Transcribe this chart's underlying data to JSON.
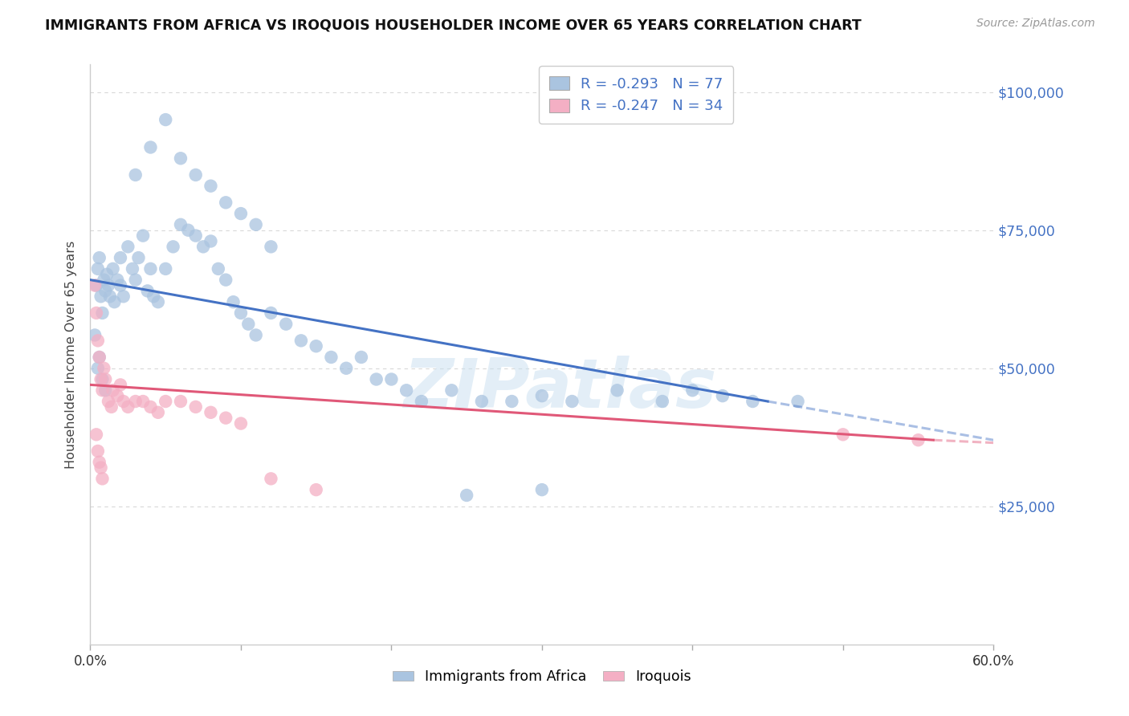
{
  "title": "IMMIGRANTS FROM AFRICA VS IROQUOIS HOUSEHOLDER INCOME OVER 65 YEARS CORRELATION CHART",
  "source": "Source: ZipAtlas.com",
  "ylabel": "Householder Income Over 65 years",
  "legend_blue_r": "R = -0.293",
  "legend_blue_n": "N = 77",
  "legend_pink_r": "R = -0.247",
  "legend_pink_n": "N = 34",
  "legend_blue_label": "Immigrants from Africa",
  "legend_pink_label": "Iroquois",
  "watermark": "ZIPatlas",
  "blue_marker_color": "#aac4e0",
  "blue_line_color": "#4472c4",
  "pink_marker_color": "#f4afc4",
  "pink_line_color": "#e05878",
  "text_color_blue": "#4472c4",
  "grid_color": "#d8d8d8",
  "background_color": "#ffffff",
  "xlim": [
    0,
    60
  ],
  "ylim": [
    0,
    105000
  ],
  "yticks": [
    25000,
    50000,
    75000,
    100000
  ],
  "ytick_labels": [
    "$25,000",
    "$50,000",
    "$75,000",
    "$100,000"
  ],
  "blue_line_x0": 0,
  "blue_line_y0": 66000,
  "blue_line_x1": 45,
  "blue_line_y1": 44000,
  "blue_line_dash_x1": 60,
  "blue_line_dash_y1": 37000,
  "pink_line_x0": 0,
  "pink_line_y0": 47000,
  "pink_line_x1": 56,
  "pink_line_y1": 37000,
  "pink_line_dash_x1": 60,
  "pink_line_dash_y1": 36500,
  "blue_scatter_x": [
    0.4,
    0.5,
    0.6,
    0.7,
    0.8,
    0.9,
    1.0,
    1.1,
    1.2,
    1.3,
    1.5,
    1.6,
    1.8,
    2.0,
    2.0,
    2.2,
    2.5,
    2.8,
    3.0,
    3.2,
    3.5,
    3.8,
    4.0,
    4.2,
    4.5,
    5.0,
    5.5,
    6.0,
    6.5,
    7.0,
    7.5,
    8.0,
    8.5,
    9.0,
    9.5,
    10.0,
    10.5,
    11.0,
    12.0,
    13.0,
    14.0,
    15.0,
    16.0,
    17.0,
    18.0,
    19.0,
    20.0,
    21.0,
    22.0,
    24.0,
    26.0,
    28.0,
    30.0,
    32.0,
    35.0,
    38.0,
    40.0,
    42.0,
    44.0,
    47.0,
    3.0,
    4.0,
    5.0,
    6.0,
    7.0,
    8.0,
    9.0,
    10.0,
    11.0,
    12.0,
    25.0,
    30.0,
    0.3,
    0.5,
    0.6,
    0.8,
    1.0
  ],
  "blue_scatter_y": [
    65000,
    68000,
    70000,
    63000,
    60000,
    66000,
    64000,
    67000,
    65000,
    63000,
    68000,
    62000,
    66000,
    65000,
    70000,
    63000,
    72000,
    68000,
    66000,
    70000,
    74000,
    64000,
    68000,
    63000,
    62000,
    68000,
    72000,
    76000,
    75000,
    74000,
    72000,
    73000,
    68000,
    66000,
    62000,
    60000,
    58000,
    56000,
    60000,
    58000,
    55000,
    54000,
    52000,
    50000,
    52000,
    48000,
    48000,
    46000,
    44000,
    46000,
    44000,
    44000,
    45000,
    44000,
    46000,
    44000,
    46000,
    45000,
    44000,
    44000,
    85000,
    90000,
    95000,
    88000,
    85000,
    83000,
    80000,
    78000,
    76000,
    72000,
    27000,
    28000,
    56000,
    50000,
    52000,
    48000,
    46000
  ],
  "pink_scatter_x": [
    0.3,
    0.4,
    0.5,
    0.6,
    0.7,
    0.8,
    0.9,
    1.0,
    1.2,
    1.4,
    1.5,
    1.8,
    2.0,
    2.2,
    2.5,
    3.0,
    3.5,
    4.0,
    4.5,
    5.0,
    6.0,
    7.0,
    8.0,
    9.0,
    10.0,
    12.0,
    15.0,
    0.4,
    0.5,
    0.6,
    0.7,
    0.8,
    50.0,
    55.0
  ],
  "pink_scatter_y": [
    65000,
    60000,
    55000,
    52000,
    48000,
    46000,
    50000,
    48000,
    44000,
    43000,
    46000,
    45000,
    47000,
    44000,
    43000,
    44000,
    44000,
    43000,
    42000,
    44000,
    44000,
    43000,
    42000,
    41000,
    40000,
    30000,
    28000,
    38000,
    35000,
    33000,
    32000,
    30000,
    38000,
    37000
  ]
}
